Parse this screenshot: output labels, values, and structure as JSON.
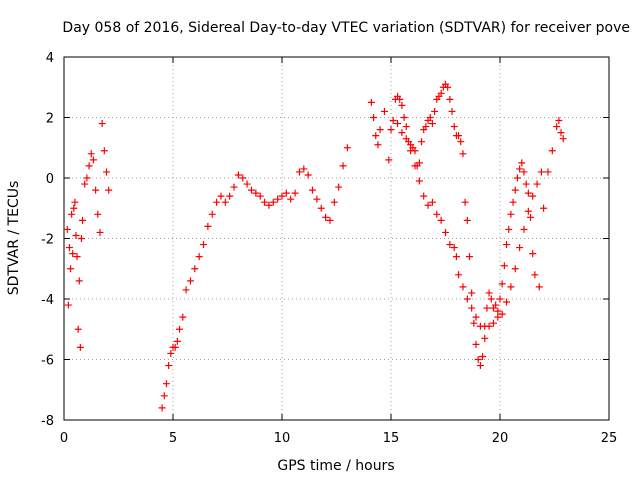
{
  "chart_data": {
    "type": "scatter",
    "title": "Day 058 of 2016, Sidereal Day-to-day VTEC variation (SDTVAR) for receiver pove",
    "xlabel": "GPS time / hours",
    "ylabel": "SDTVAR / TECUs",
    "xlim": [
      0,
      25
    ],
    "ylim": [
      -8,
      4
    ],
    "x_ticks": [
      0,
      5,
      10,
      15,
      20,
      25
    ],
    "y_ticks": [
      -8,
      -6,
      -4,
      -2,
      0,
      2,
      4
    ],
    "x_tick_labels": [
      "0",
      "5",
      "10",
      "15",
      "20",
      "25"
    ],
    "y_tick_labels": [
      "-8",
      "-6",
      "-4",
      "-2",
      "0",
      "2",
      "4"
    ],
    "grid": true,
    "marker": "+",
    "color": "#ff0000",
    "series": [
      {
        "name": "",
        "x": [
          0.15,
          0.2,
          0.25,
          0.3,
          0.35,
          0.4,
          0.45,
          0.5,
          0.55,
          0.6,
          0.65,
          0.7,
          0.75,
          0.8,
          0.85,
          0.95,
          1.05,
          1.15,
          1.25,
          1.35,
          1.45,
          1.55,
          1.65,
          1.75,
          1.85,
          1.95,
          2.05,
          4.5,
          4.6,
          4.7,
          4.8,
          4.9,
          5.0,
          5.1,
          5.2,
          5.3,
          5.45,
          5.6,
          5.8,
          6.0,
          6.2,
          6.4,
          6.6,
          6.8,
          7.0,
          7.2,
          7.4,
          7.6,
          7.8,
          8.0,
          8.2,
          8.4,
          8.6,
          8.8,
          9.0,
          9.2,
          9.4,
          9.6,
          9.8,
          10.0,
          10.2,
          10.4,
          10.6,
          10.8,
          11.0,
          11.2,
          11.4,
          11.6,
          11.8,
          12.0,
          12.2,
          12.4,
          12.6,
          12.8,
          13.0,
          14.1,
          14.2,
          14.3,
          14.4,
          14.5,
          14.7,
          14.9,
          15.0,
          15.1,
          15.2,
          15.3,
          15.4,
          15.5,
          15.6,
          15.7,
          15.8,
          15.9,
          16.0,
          16.1,
          16.2,
          16.3,
          16.4,
          16.5,
          16.6,
          16.7,
          16.8,
          16.9,
          17.0,
          17.1,
          17.2,
          17.3,
          17.4,
          17.5,
          17.6,
          17.7,
          17.8,
          17.9,
          18.0,
          18.1,
          18.2,
          18.3,
          18.4,
          18.5,
          18.6,
          18.7,
          18.8,
          18.9,
          19.0,
          19.1,
          19.2,
          19.3,
          19.4,
          19.5,
          19.6,
          19.7,
          19.8,
          19.9,
          20.0,
          20.1,
          20.2,
          20.3,
          20.4,
          20.5,
          20.6,
          20.7,
          20.8,
          20.9,
          21.0,
          21.1,
          21.2,
          21.3,
          21.4,
          21.5,
          21.6,
          21.8,
          22.0,
          22.2,
          22.4,
          22.6,
          22.7,
          22.8,
          22.9,
          15.3,
          15.5,
          15.7,
          15.9,
          16.1,
          16.3,
          16.5,
          16.7,
          16.9,
          17.1,
          17.3,
          17.5,
          17.7,
          17.9,
          18.0,
          18.1,
          18.3,
          18.5,
          18.7,
          18.9,
          19.1,
          19.3,
          19.5,
          19.7,
          19.9,
          20.1,
          20.3,
          20.5,
          20.7,
          20.9,
          21.1,
          21.3,
          21.5,
          21.7,
          21.9
        ],
        "y": [
          -1.7,
          -4.2,
          -2.3,
          -3.0,
          -1.2,
          -2.5,
          -1.0,
          -0.8,
          -1.9,
          -2.6,
          -5.0,
          -3.4,
          -5.6,
          -2.0,
          -1.4,
          -0.2,
          0.0,
          0.4,
          0.8,
          0.6,
          -0.4,
          -1.2,
          -1.8,
          1.8,
          0.9,
          0.2,
          -0.4,
          -7.6,
          -7.2,
          -6.8,
          -6.2,
          -5.8,
          -5.6,
          -5.6,
          -5.4,
          -5.0,
          -4.6,
          -3.7,
          -3.4,
          -3.0,
          -2.6,
          -2.2,
          -1.6,
          -1.2,
          -0.8,
          -0.6,
          -0.8,
          -0.6,
          -0.3,
          0.1,
          0.0,
          -0.2,
          -0.4,
          -0.5,
          -0.6,
          -0.8,
          -0.9,
          -0.8,
          -0.7,
          -0.6,
          -0.5,
          -0.7,
          -0.5,
          0.2,
          0.3,
          0.1,
          -0.4,
          -0.7,
          -1.0,
          -1.3,
          -1.4,
          -0.8,
          -0.3,
          0.4,
          1.0,
          2.5,
          2.0,
          1.4,
          1.1,
          1.6,
          2.2,
          0.6,
          1.6,
          1.9,
          2.6,
          2.7,
          2.6,
          2.4,
          2.0,
          1.7,
          1.2,
          1.1,
          1.0,
          0.9,
          0.4,
          0.5,
          1.2,
          1.6,
          1.7,
          1.9,
          2.0,
          1.8,
          2.2,
          2.6,
          2.7,
          2.8,
          3.0,
          3.1,
          3.0,
          2.6,
          2.2,
          1.7,
          1.4,
          1.4,
          1.2,
          0.8,
          -0.8,
          -1.4,
          -2.6,
          -3.8,
          -4.8,
          -5.5,
          -6.0,
          -6.2,
          -5.9,
          -5.3,
          -4.3,
          -3.8,
          -4.0,
          -4.3,
          -4.2,
          -4.4,
          -4.0,
          -3.5,
          -2.9,
          -2.2,
          -1.7,
          -1.2,
          -0.8,
          -0.4,
          0.0,
          0.3,
          0.5,
          0.2,
          -0.2,
          -0.5,
          -1.3,
          -2.5,
          -3.2,
          -3.6,
          -1.0,
          0.2,
          0.9,
          1.7,
          1.9,
          1.5,
          1.3,
          1.8,
          1.5,
          1.3,
          0.9,
          0.4,
          -0.1,
          -0.6,
          -0.9,
          -0.8,
          -1.2,
          -1.4,
          -1.8,
          -2.2,
          -2.3,
          -2.6,
          -3.2,
          -3.6,
          -4.0,
          -4.3,
          -4.6,
          -4.9,
          -4.9,
          -4.9,
          -4.8,
          -4.6,
          -4.5,
          -4.1,
          -3.6,
          -3.0,
          -2.3,
          -1.7,
          -1.1,
          -0.6,
          -0.2,
          0.2
        ]
      }
    ]
  }
}
